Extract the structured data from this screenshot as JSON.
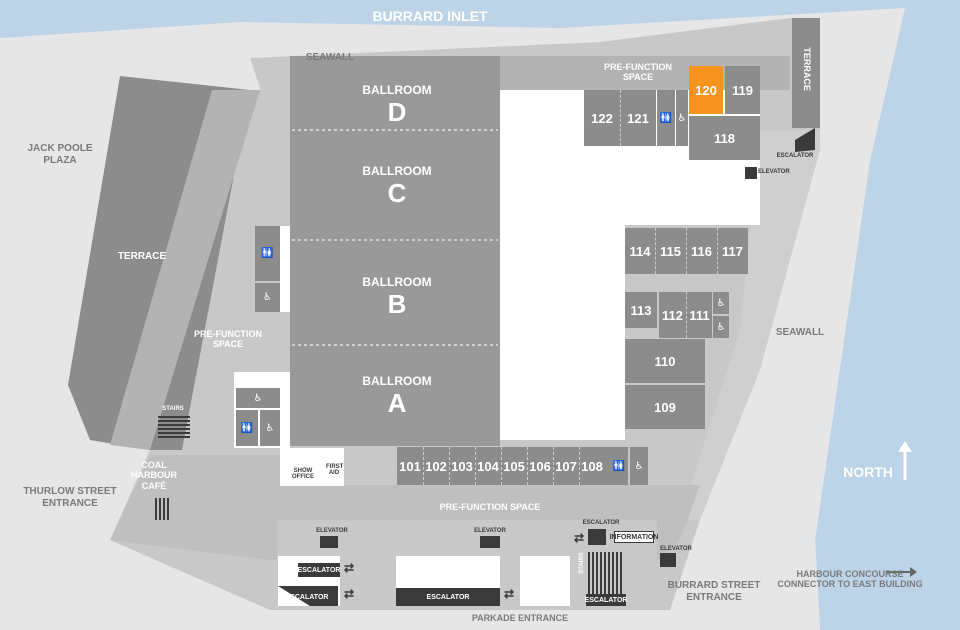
{
  "water": {
    "inlet_label": "BURRARD INLET",
    "north_label": "NORTH",
    "colors": {
      "water": "#bcd3e8",
      "outer": "#c8c8c8",
      "mid": "#b3b3b3",
      "room": "#8c8c8c",
      "dark": "#3a3a3a",
      "highlight": "#f7941d"
    }
  },
  "areas": {
    "seawall_top": "SEAWALL",
    "seawall_right": "SEAWALL",
    "jack_poole": "JACK POOLE\nPLAZA",
    "terrace_west": "TERRACE",
    "terrace_east": "TERRACE",
    "prefunction_top": "PRE-FUNCTION\nSPACE",
    "prefunction_left": "PRE-FUNCTION\nSPACE",
    "prefunction_bottom": "PRE-FUNCTION SPACE",
    "coal_harbour": "COAL\nHARBOUR\nCAFÉ",
    "thurlow": "THURLOW STREET\nENTRANCE",
    "burrard": "BURRARD STREET\nENTRANCE",
    "harbour": "HARBOUR CONCOURSE\nCONNECTOR TO EAST BUILDING",
    "parkade": "PARKADE ENTRANCE"
  },
  "ballrooms": [
    {
      "name": "BALLROOM",
      "letter": "D"
    },
    {
      "name": "BALLROOM",
      "letter": "C"
    },
    {
      "name": "BALLROOM",
      "letter": "B"
    },
    {
      "name": "BALLROOM",
      "letter": "A"
    }
  ],
  "rooms": {
    "r101": "101",
    "r102": "102",
    "r103": "103",
    "r104": "104",
    "r105": "105",
    "r106": "106",
    "r107": "107",
    "r108": "108",
    "r109": "109",
    "r110": "110",
    "r111": "111",
    "r112": "112",
    "r113": "113",
    "r114": "114",
    "r115": "115",
    "r116": "116",
    "r117": "117",
    "r118": "118",
    "r119": "119",
    "r120": "120",
    "r121": "121",
    "r122": "122"
  },
  "services": {
    "escalator": "ESCALATOR",
    "elevator": "ELEVATOR",
    "stairs": "STAIRS",
    "information": "INFORMATION",
    "show_office": "SHOW OFFICE",
    "first_aid": "FIRST AID"
  },
  "icons": {
    "restroom": "🚻",
    "accessible": "♿",
    "arrow_right": "→",
    "arrow_up": "↑",
    "swap": "⇄"
  }
}
